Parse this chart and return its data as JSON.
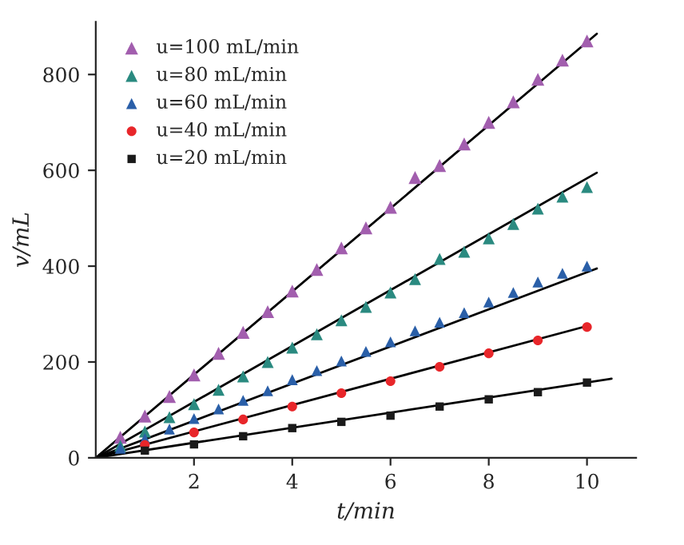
{
  "chart_data": {
    "type": "scatter",
    "xlabel": "t/min",
    "ylabel": "v/mL",
    "xlim": [
      0,
      11
    ],
    "ylim": [
      0,
      910
    ],
    "xticks": [
      2,
      4,
      6,
      8,
      10
    ],
    "yticks": [
      0,
      200,
      400,
      600,
      800
    ],
    "grid": false,
    "legend": "top left",
    "series": [
      {
        "name": "u=100 mL/min",
        "color": "#a25eae",
        "marker": "triangle",
        "x": [
          0.5,
          1,
          1.5,
          2,
          2.5,
          3,
          3.5,
          4,
          4.5,
          5,
          5.5,
          6,
          6.5,
          7,
          7.5,
          8,
          8.5,
          9,
          9.5,
          10
        ],
        "values": [
          43,
          87,
          128,
          173,
          218,
          262,
          305,
          348,
          393,
          438,
          480,
          523,
          585,
          610,
          655,
          700,
          743,
          790,
          830,
          870
        ]
      },
      {
        "name": "u=80 mL/min",
        "color": "#2a8a80",
        "marker": "triangle",
        "x": [
          0.5,
          1,
          1.5,
          2,
          2.5,
          3,
          3.5,
          4,
          4.5,
          5,
          5.5,
          6,
          6.5,
          7,
          7.5,
          8,
          8.5,
          9,
          9.5,
          10
        ],
        "values": [
          25,
          55,
          85,
          112,
          142,
          170,
          200,
          230,
          258,
          287,
          315,
          345,
          373,
          415,
          430,
          458,
          488,
          520,
          545,
          565
        ]
      },
      {
        "name": "u=60 mL/min",
        "color": "#2a5fa8",
        "marker": "triangle",
        "x": [
          0.5,
          1,
          1.5,
          2,
          2.5,
          3,
          3.5,
          4,
          4.5,
          5,
          5.5,
          6,
          6.5,
          7,
          7.5,
          8,
          8.5,
          9,
          9.5,
          10
        ],
        "values": [
          20,
          40,
          60,
          82,
          102,
          120,
          140,
          163,
          182,
          202,
          222,
          242,
          265,
          283,
          303,
          325,
          345,
          367,
          385,
          400
        ]
      },
      {
        "name": "u=40 mL/min",
        "color": "#e8262a",
        "marker": "circle",
        "x": [
          1,
          2,
          3,
          4,
          5,
          6,
          7,
          8,
          9,
          10
        ],
        "values": [
          27,
          53,
          80,
          107,
          135,
          160,
          190,
          218,
          245,
          273
        ]
      },
      {
        "name": "u=20 mL/min",
        "color": "#1a1a1a",
        "marker": "square",
        "x": [
          1,
          2,
          3,
          4,
          5,
          6,
          7,
          8,
          9,
          10
        ],
        "values": [
          15,
          28,
          45,
          62,
          75,
          88,
          107,
          122,
          137,
          157
        ]
      },
      {
        "type": "line",
        "color": "#000000",
        "x": [
          0,
          10.2
        ],
        "values": [
          0,
          885
        ]
      },
      {
        "type": "line",
        "color": "#000000",
        "x": [
          0,
          10.2
        ],
        "values": [
          0,
          595
        ]
      },
      {
        "type": "line",
        "color": "#000000",
        "x": [
          0,
          10.2
        ],
        "values": [
          0,
          395
        ]
      },
      {
        "type": "line",
        "color": "#000000",
        "x": [
          0,
          10
        ],
        "values": [
          0,
          275
        ]
      },
      {
        "type": "line",
        "color": "#000000",
        "x": [
          0,
          10.5
        ],
        "values": [
          0,
          165
        ]
      }
    ]
  }
}
